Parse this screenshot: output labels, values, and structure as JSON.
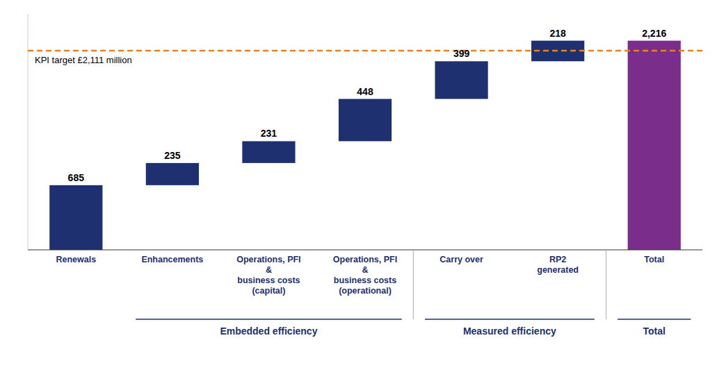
{
  "chart_data": {
    "type": "waterfall",
    "categories": [
      "Renewals",
      "Enhancements",
      "Operations, PFI\n&\nbusiness costs\n(capital)",
      "Operations, PFI\n&\nbusiness costs\n(operational)",
      "Carry over",
      "RP2\ngenerated",
      "Total"
    ],
    "values": [
      685,
      235,
      231,
      448,
      399,
      218,
      2216
    ],
    "value_labels": [
      "685",
      "235",
      "231",
      "448",
      "399",
      "218",
      "2,216"
    ],
    "colors": [
      "#1e3070",
      "#1e3070",
      "#1e3070",
      "#1e3070",
      "#1e3070",
      "#1e3070",
      "#7b2d8b"
    ],
    "data_labels": true,
    "tick_labels": "x",
    "ylim": [
      0,
      2500
    ],
    "annotations": [
      {
        "label": "KPI target £2,111 million",
        "value": 2111,
        "color": "#e8821e",
        "line_style": "dashed"
      }
    ],
    "groups": [
      {
        "label": "Embedded efficiency",
        "first": "Enhancements",
        "last": "Operations, PFI\n&\nbusiness costs\n(operational)"
      },
      {
        "label": "Measured efficiency",
        "first": "Carry over",
        "last": "RP2\ngenerated"
      },
      {
        "label": "Total",
        "first": "Total",
        "last": "Total"
      }
    ]
  }
}
